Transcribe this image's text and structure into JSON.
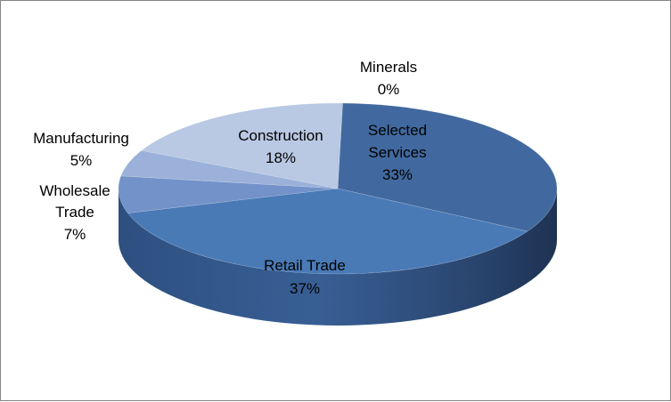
{
  "chart_data": {
    "type": "pie",
    "title": "",
    "style": "3d",
    "slices": [
      {
        "name": "Minerals",
        "value": 0,
        "pct_label": "0%",
        "color": "#3a5f95"
      },
      {
        "name": "Selected Services",
        "value": 33,
        "pct_label": "33%",
        "color": "#41699f"
      },
      {
        "name": "Retail Trade",
        "value": 37,
        "pct_label": "37%",
        "color": "#4a7ab6"
      },
      {
        "name": "Wholesale Trade",
        "value": 7,
        "pct_label": "7%",
        "color": "#7392c9"
      },
      {
        "name": "Manufacturing",
        "value": 5,
        "pct_label": "5%",
        "color": "#9bb1d9"
      },
      {
        "name": "Construction",
        "value": 18,
        "pct_label": "18%",
        "color": "#b9c8e3"
      }
    ],
    "label_lines": {
      "minerals": [
        "Minerals",
        "0%"
      ],
      "selected_services": [
        "Selected",
        "Services",
        "33%"
      ],
      "retail_trade": [
        "Retail Trade",
        "37%"
      ],
      "wholesale_trade": [
        "Wholesale",
        "Trade",
        "7%"
      ],
      "manufacturing": [
        "Manufacturing",
        "5%"
      ],
      "construction": [
        "Construction",
        "18%"
      ]
    }
  }
}
